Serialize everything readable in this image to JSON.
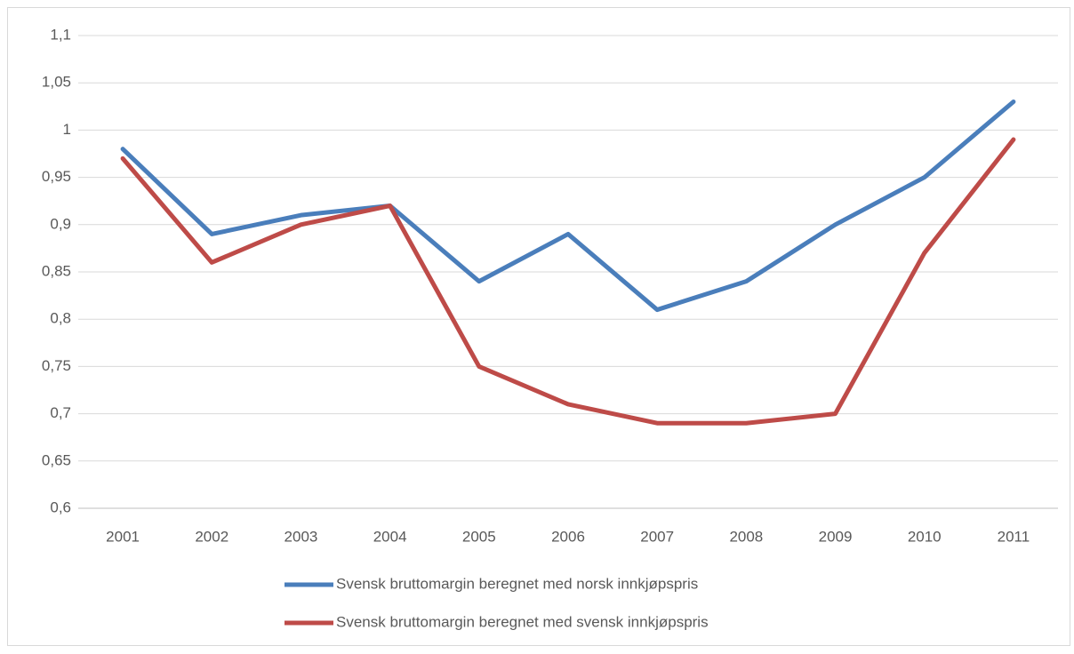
{
  "chart_data": {
    "type": "line",
    "categories": [
      "2001",
      "2002",
      "2003",
      "2004",
      "2005",
      "2006",
      "2007",
      "2008",
      "2009",
      "2010",
      "2011"
    ],
    "series": [
      {
        "name": "Svensk bruttomargin beregnet med norsk innkjøpspris",
        "color": "#4a7ebb",
        "values": [
          0.98,
          0.89,
          0.91,
          0.92,
          0.84,
          0.89,
          0.81,
          0.84,
          0.9,
          0.95,
          1.03
        ]
      },
      {
        "name": "Svensk bruttomargin beregnet med svensk innkjøpspris",
        "color": "#be4b48",
        "values": [
          0.97,
          0.86,
          0.9,
          0.92,
          0.75,
          0.71,
          0.69,
          0.69,
          0.7,
          0.87,
          0.99
        ]
      }
    ],
    "ylim": [
      0.6,
      1.1
    ],
    "yticks": [
      {
        "value": 0.6,
        "label": "0,6"
      },
      {
        "value": 0.65,
        "label": "0,65"
      },
      {
        "value": 0.7,
        "label": "0,7"
      },
      {
        "value": 0.75,
        "label": "0,75"
      },
      {
        "value": 0.8,
        "label": "0,8"
      },
      {
        "value": 0.85,
        "label": "0,85"
      },
      {
        "value": 0.9,
        "label": "0,9"
      },
      {
        "value": 0.95,
        "label": "0,95"
      },
      1,
      {
        "value": 1.05,
        "label": "1,05"
      },
      {
        "value": 1.1,
        "label": "1,1"
      }
    ],
    "grid": true,
    "legend": "bottom"
  }
}
